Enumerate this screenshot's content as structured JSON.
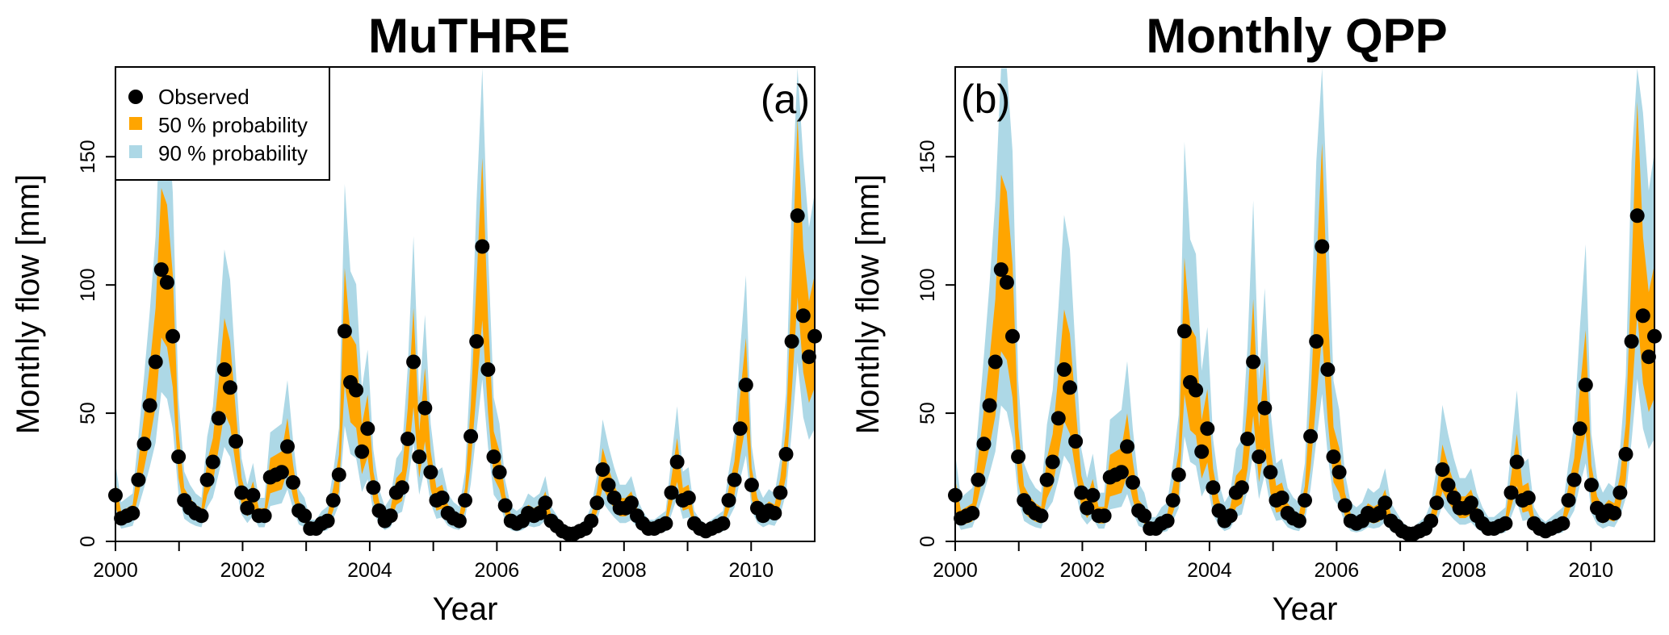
{
  "chart_data": [
    {
      "type": "area",
      "title": "MuTHRE",
      "panel_label": "(a)",
      "xlabel": "Year",
      "ylabel": "Monthly flow [mm]",
      "xlim": [
        2000,
        2011
      ],
      "ylim": [
        0,
        185
      ],
      "xticks": [
        "2000",
        "2002",
        "2004",
        "2006",
        "2008",
        "2010"
      ],
      "yticks": [
        "0",
        "50",
        "100",
        "150"
      ],
      "legend": {
        "placement": "top-left",
        "entries": [
          "Observed",
          "50 % probability",
          "90 % probability"
        ]
      },
      "colors": {
        "observed": "#000000",
        "band50": "#ffa500",
        "band90": "#add8e6"
      },
      "band_factors": {
        "q25": 0.75,
        "q75": 1.3,
        "q5": 0.55,
        "q95": 1.7
      },
      "observed": [
        18,
        9,
        10,
        11,
        24,
        38,
        53,
        70,
        106,
        101,
        80,
        33,
        16,
        13,
        11,
        10,
        24,
        31,
        48,
        67,
        60,
        39,
        19,
        13,
        18,
        10,
        10,
        25,
        26,
        27,
        37,
        23,
        12,
        10,
        5,
        5,
        7,
        8,
        16,
        26,
        82,
        62,
        59,
        35,
        44,
        21,
        12,
        8,
        10,
        19,
        21,
        40,
        70,
        33,
        52,
        27,
        16,
        17,
        11,
        9,
        8,
        16,
        41,
        78,
        115,
        67,
        33,
        27,
        14,
        8,
        7,
        8,
        11,
        10,
        11,
        15,
        8,
        6,
        4,
        3,
        3,
        4,
        5,
        8,
        15,
        28,
        22,
        17,
        13,
        13,
        15,
        10,
        7,
        5,
        5,
        6,
        7,
        19,
        31,
        16,
        17,
        7,
        5,
        4,
        5,
        6,
        7,
        16,
        24,
        44,
        61,
        22,
        13,
        10,
        12,
        11,
        19,
        34,
        78,
        127,
        88,
        72,
        80
      ]
    },
    {
      "type": "area",
      "title": "Monthly QPP",
      "panel_label": "(b)",
      "xlabel": "Year",
      "ylabel": "Monthly flow [mm]",
      "xlim": [
        2000,
        2011
      ],
      "ylim": [
        0,
        185
      ],
      "xticks": [
        "2000",
        "2002",
        "2004",
        "2006",
        "2008",
        "2010"
      ],
      "yticks": [
        "0",
        "50",
        "100",
        "150"
      ],
      "colors": {
        "observed": "#000000",
        "band50": "#ffa500",
        "band90": "#add8e6"
      },
      "band_factors": {
        "q25": 0.7,
        "q75": 1.35,
        "q5": 0.5,
        "q95": 1.9
      },
      "observed": [
        18,
        9,
        10,
        11,
        24,
        38,
        53,
        70,
        106,
        101,
        80,
        33,
        16,
        13,
        11,
        10,
        24,
        31,
        48,
        67,
        60,
        39,
        19,
        13,
        18,
        10,
        10,
        25,
        26,
        27,
        37,
        23,
        12,
        10,
        5,
        5,
        7,
        8,
        16,
        26,
        82,
        62,
        59,
        35,
        44,
        21,
        12,
        8,
        10,
        19,
        21,
        40,
        70,
        33,
        52,
        27,
        16,
        17,
        11,
        9,
        8,
        16,
        41,
        78,
        115,
        67,
        33,
        27,
        14,
        8,
        7,
        8,
        11,
        10,
        11,
        15,
        8,
        6,
        4,
        3,
        3,
        4,
        5,
        8,
        15,
        28,
        22,
        17,
        13,
        13,
        15,
        10,
        7,
        5,
        5,
        6,
        7,
        19,
        31,
        16,
        17,
        7,
        5,
        4,
        5,
        6,
        7,
        16,
        24,
        44,
        61,
        22,
        13,
        10,
        12,
        11,
        19,
        34,
        78,
        127,
        88,
        72,
        80
      ]
    }
  ]
}
